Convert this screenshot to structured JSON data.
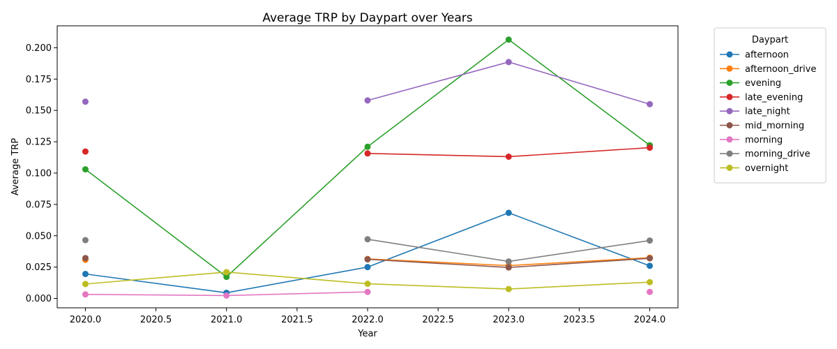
{
  "chart_data": {
    "type": "line",
    "title": "Average TRP by Daypart over Years",
    "xlabel": "Year",
    "ylabel": "Average TRP",
    "xlim": [
      1979.8,
      2024.2
    ],
    "ylim": [
      -0.0075,
      0.2175
    ],
    "xticks": [
      "2020.0",
      "2020.5",
      "2021.0",
      "2021.5",
      "2022.0",
      "2022.5",
      "2023.0",
      "2023.5",
      "2024.0"
    ],
    "yticks": [
      "0.000",
      "0.025",
      "0.050",
      "0.075",
      "0.100",
      "0.125",
      "0.150",
      "0.175",
      "0.200"
    ],
    "legend_title": "Daypart",
    "legend_position": "outside-upper-right",
    "x": [
      2020,
      2021,
      2022,
      2023,
      2024
    ],
    "series": [
      {
        "name": "afternoon",
        "color": "#1f77b4",
        "values": [
          0.0195,
          0.0045,
          0.025,
          0.0683,
          0.026
        ]
      },
      {
        "name": "afternoon_drive",
        "color": "#ff7f0e",
        "values": [
          0.0308,
          null,
          0.0315,
          0.0262,
          0.0325
        ]
      },
      {
        "name": "evening",
        "color": "#2ca02c",
        "values": [
          0.103,
          0.0172,
          0.121,
          0.2065,
          0.1222
        ]
      },
      {
        "name": "late_evening",
        "color": "#d62728",
        "values": [
          0.1172,
          null,
          0.1157,
          0.1131,
          0.1203
        ]
      },
      {
        "name": "late_night",
        "color": "#9467bd",
        "values": [
          0.157,
          null,
          0.158,
          0.1886,
          0.155
        ]
      },
      {
        "name": "mid_morning",
        "color": "#8c564b",
        "values": [
          0.0322,
          null,
          0.0312,
          0.0247,
          0.032
        ]
      },
      {
        "name": "morning",
        "color": "#e377c2",
        "values": [
          0.0032,
          0.0023,
          0.0052,
          null,
          0.0052
        ]
      },
      {
        "name": "morning_drive",
        "color": "#7f7f7f",
        "values": [
          0.0465,
          null,
          0.0472,
          0.0295,
          0.0462
        ]
      },
      {
        "name": "overnight",
        "color": "#bcbd22",
        "values": [
          0.0115,
          0.021,
          0.0117,
          0.0075,
          0.013
        ]
      }
    ]
  }
}
